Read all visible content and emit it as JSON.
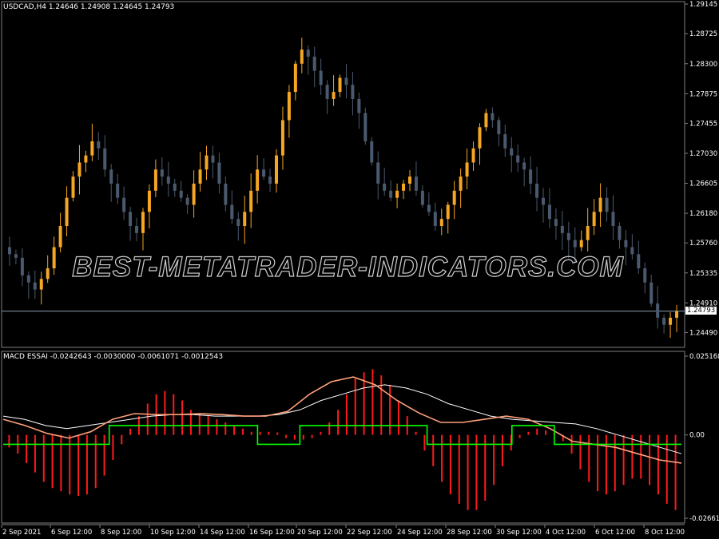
{
  "colors": {
    "background": "#000000",
    "bull": "#f5a623",
    "bear": "#4a5a6e",
    "hist": "#ff1a1a",
    "signal": "#00ff00",
    "line_white": "#ffffff",
    "line_salmon": "#ffa07a",
    "grid": "#808080",
    "text": "#ffffff"
  },
  "price_panel": {
    "title": "USDCAD,H4  1.24646 1.24908 1.24645 1.24793",
    "watermark": "BEST-METATRADER-INDICATORS.COM",
    "current_price": "1.24793",
    "current_value": 1.24793,
    "ylim": [
      1.2428,
      1.2918
    ],
    "ticks": [
      "1.29145",
      "1.28725",
      "1.28300",
      "1.27875",
      "1.27455",
      "1.27030",
      "1.26605",
      "1.26180",
      "1.25760",
      "1.25335",
      "1.24910",
      "1.24490"
    ]
  },
  "indicator_panel": {
    "title": "MACD ESSAI -0.0242643 -0.0030000 -0.0061071 -0.0012543",
    "ticks": [
      "0.0251682",
      "0.00",
      "-0.0266182"
    ],
    "ylim": [
      -0.0266182,
      0.0251682
    ]
  },
  "x_axis": {
    "labels": [
      "2 Sep 2021",
      "6 Sep 12:00",
      "8 Sep 12:00",
      "10 Sep 12:00",
      "14 Sep 12:00",
      "16 Sep 12:00",
      "20 Sep 12:00",
      "22 Sep 12:00",
      "24 Sep 12:00",
      "28 Sep 12:00",
      "30 Sep 12:00",
      "4 Oct 12:00",
      "6 Oct 12:00",
      "8 Oct 12:00"
    ]
  },
  "chart_data": [
    {
      "type": "line",
      "title": "USDCAD,H4",
      "note": "Candlestick price chart; approximate close values per bar",
      "series": [
        {
          "name": "USDCAD",
          "values": [
            1.256,
            1.2555,
            1.253,
            1.252,
            1.251,
            1.2525,
            1.254,
            1.257,
            1.26,
            1.264,
            1.267,
            1.269,
            1.27,
            1.272,
            1.271,
            1.268,
            1.266,
            1.264,
            1.262,
            1.26,
            1.259,
            1.262,
            1.265,
            1.268,
            1.267,
            1.266,
            1.265,
            1.264,
            1.263,
            1.266,
            1.268,
            1.27,
            1.269,
            1.266,
            1.263,
            1.261,
            1.26,
            1.262,
            1.265,
            1.268,
            1.267,
            1.266,
            1.27,
            1.275,
            1.279,
            1.283,
            1.285,
            1.284,
            1.282,
            1.28,
            1.278,
            1.279,
            1.281,
            1.28,
            1.278,
            1.276,
            1.272,
            1.269,
            1.266,
            1.265,
            1.264,
            1.265,
            1.266,
            1.267,
            1.265,
            1.263,
            1.262,
            1.26,
            1.261,
            1.263,
            1.265,
            1.267,
            1.269,
            1.271,
            1.274,
            1.276,
            1.275,
            1.273,
            1.271,
            1.27,
            1.269,
            1.268,
            1.266,
            1.264,
            1.263,
            1.261,
            1.26,
            1.259,
            1.258,
            1.257,
            1.258,
            1.26,
            1.262,
            1.264,
            1.262,
            1.26,
            1.258,
            1.257,
            1.256,
            1.254,
            1.252,
            1.249,
            1.247,
            1.246,
            1.247,
            1.2479
          ]
        }
      ]
    },
    {
      "type": "bar",
      "title": "MACD ESSAI",
      "note": "Histogram (red) plus white line, salmon line and green step signal",
      "series": [
        {
          "name": "histogram",
          "values": [
            -0.004,
            -0.006,
            -0.009,
            -0.012,
            -0.015,
            -0.017,
            -0.018,
            -0.019,
            -0.0195,
            -0.019,
            -0.017,
            -0.013,
            -0.008,
            -0.003,
            0.002,
            0.006,
            0.01,
            0.013,
            0.014,
            0.013,
            0.011,
            0.008,
            0.007,
            0.006,
            0.005,
            0.004,
            0.003,
            0.002,
            0.001,
            0.001,
            0.001,
            0.0008,
            -0.001,
            -0.0015,
            -0.0015,
            -0.001,
            0.001,
            0.004,
            0.008,
            0.013,
            0.018,
            0.02,
            0.021,
            0.019,
            0.016,
            0.011,
            0.006,
            0.001,
            -0.005,
            -0.01,
            -0.015,
            -0.019,
            -0.022,
            -0.024,
            -0.024,
            -0.021,
            -0.016,
            -0.01,
            -0.005,
            -0.001,
            0.001,
            0.002,
            0.0015,
            0.0005,
            -0.002,
            -0.006,
            -0.011,
            -0.015,
            -0.018,
            -0.019,
            -0.018,
            -0.016,
            -0.014,
            -0.014,
            -0.016,
            -0.019,
            -0.022,
            -0.024
          ]
        },
        {
          "name": "white",
          "values": [
            0.006,
            0.005,
            0.003,
            0.002,
            0.003,
            0.004,
            0.005,
            0.006,
            0.0065,
            0.0065,
            0.006,
            0.006,
            0.006,
            0.0065,
            0.008,
            0.011,
            0.013,
            0.015,
            0.016,
            0.015,
            0.013,
            0.01,
            0.008,
            0.006,
            0.005,
            0.0045,
            0.004,
            0.0035,
            0.002,
            0.0,
            -0.002,
            -0.004,
            -0.006
          ]
        },
        {
          "name": "salmon",
          "values": [
            0.005,
            0.003,
            0.0005,
            -0.001,
            0.001,
            0.005,
            0.0068,
            0.0065,
            0.0065,
            0.0068,
            0.0065,
            0.006,
            0.006,
            0.0075,
            0.013,
            0.017,
            0.0185,
            0.016,
            0.011,
            0.007,
            0.004,
            0.004,
            0.005,
            0.006,
            0.005,
            0.002,
            -0.002,
            -0.003,
            -0.004,
            -0.006,
            -0.008,
            -0.009
          ]
        },
        {
          "name": "signal",
          "values": [
            -0.003,
            -0.003,
            -0.003,
            -0.003,
            -0.003,
            0.003,
            0.003,
            0.003,
            0.003,
            0.003,
            0.003,
            0.003,
            -0.003,
            -0.003,
            0.003,
            0.003,
            0.003,
            0.003,
            0.003,
            0.003,
            -0.003,
            -0.003,
            -0.003,
            -0.003,
            0.003,
            0.003,
            -0.003,
            -0.003,
            -0.003,
            -0.003,
            -0.003,
            -0.003
          ]
        }
      ]
    }
  ]
}
